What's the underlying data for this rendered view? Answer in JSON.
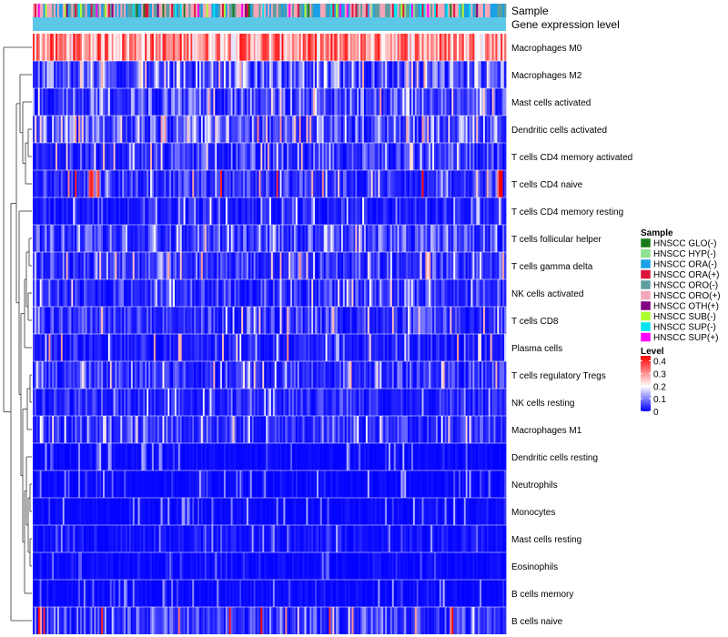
{
  "chart_data": {
    "type": "heatmap",
    "title": "",
    "annotation_tracks": [
      "Sample",
      "Gene expression level"
    ],
    "rows": [
      "Macrophages M0",
      "Macrophages M2",
      "Mast cells activated",
      "Dendritic cells activated",
      "T cells CD4 memory activated",
      "T cells CD4 naive",
      "T cells CD4 memory resting",
      "T cells follicular helper",
      "T cells gamma delta",
      "NK cells activated",
      "T cells CD8",
      "Plasma cells",
      "T cells regulatory  Tregs",
      "NK cells resting",
      "Macrophages M1",
      "Dendritic cells resting",
      "Neutrophils",
      "Monocytes",
      "Mast cells resting",
      "Eosinophils",
      "B cells memory",
      "B cells naive"
    ],
    "row_typical_level": [
      0.32,
      0.1,
      0.08,
      0.09,
      0.06,
      0.05,
      0.03,
      0.07,
      0.06,
      0.05,
      0.05,
      0.03,
      0.06,
      0.04,
      0.05,
      0.01,
      0.01,
      0.01,
      0.02,
      0.01,
      0.01,
      0.07
    ],
    "row_peak_level": [
      0.44,
      0.3,
      0.3,
      0.33,
      0.3,
      0.44,
      0.22,
      0.28,
      0.3,
      0.25,
      0.28,
      0.32,
      0.3,
      0.2,
      0.25,
      0.15,
      0.15,
      0.15,
      0.15,
      0.1,
      0.15,
      0.44
    ],
    "n_samples": 270,
    "color_scale": {
      "title": "Level",
      "min": 0,
      "max": 0.44,
      "ticks": [
        0,
        0.1,
        0.2,
        0.3,
        0.4
      ],
      "tick_labels": [
        "0",
        "0.1",
        "0.2",
        "0.3",
        "0.4"
      ],
      "low_color": "#0000ff",
      "mid_color": "#ffffff",
      "high_color": "#ff0000"
    },
    "sample_legend": {
      "title": "Sample",
      "entries": [
        {
          "label": "HNSCC GLO(-)",
          "color": "#1a7a1a"
        },
        {
          "label": "HNSCC HYP(-)",
          "color": "#8fe08f"
        },
        {
          "label": "HNSCC ORA(-)",
          "color": "#1aa0e6"
        },
        {
          "label": "HNSCC ORA(+)",
          "color": "#dc143c"
        },
        {
          "label": "HNSCC ORO(-)",
          "color": "#5f9ea0"
        },
        {
          "label": "HNSCC ORO(+)",
          "color": "#f4a7b9"
        },
        {
          "label": "HNSCC OTH(+)",
          "color": "#800080"
        },
        {
          "label": "HNSCC SUB(-)",
          "color": "#adff2f"
        },
        {
          "label": "HNSCC SUP(-)",
          "color": "#00e5ee"
        },
        {
          "label": "HNSCC SUP(+)",
          "color": "#ff00ff"
        }
      ]
    },
    "gene_expression_level_color": "#5bc8e8"
  }
}
